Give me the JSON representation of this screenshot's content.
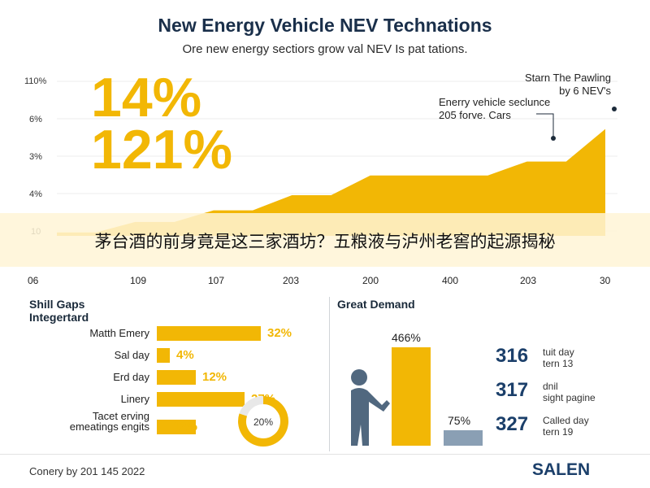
{
  "header": {
    "title": "New Energy Vehicle NEV Technations",
    "subtitle": "Ore new energy sectiors grow val NEV Is pat tations."
  },
  "highlights": {
    "stat_1": "14%",
    "stat_2": "121%"
  },
  "chart_data": [
    {
      "type": "area",
      "title": "New Energy Vehicle NEV Technations",
      "x_tick_labels": [
        "06",
        "109",
        "107",
        "203",
        "200",
        "400",
        "203",
        "30"
      ],
      "y_tick_labels": [
        "110%",
        "6%",
        "3%",
        "4%",
        "10"
      ],
      "color": "#f2b705",
      "series": [
        {
          "values": [
            0.3,
            1.2,
            2.2,
            3.5,
            5.2,
            5.2,
            6.4,
            9.2
          ]
        }
      ],
      "ylim": [
        0,
        14
      ],
      "annotations": [
        {
          "text_lines": [
            "Starn The Pawling",
            "by 6 NEV's"
          ]
        },
        {
          "text_lines": [
            "Enerry vehicle seclunce",
            "205 forve. Cars"
          ]
        }
      ]
    },
    {
      "type": "bar",
      "title": "Shill Gaps Integertard",
      "orientation": "horizontal",
      "color": "#f2b705",
      "categories": [
        "Matth Emery",
        "Sal day",
        "Erd day",
        "Linery",
        "Tacet erving emeatings engits"
      ],
      "values": [
        32,
        4,
        12,
        27,
        12
      ],
      "value_labels": [
        "32%",
        "4%",
        "12%",
        "27%",
        "12%"
      ],
      "xlim": [
        0,
        40
      ]
    },
    {
      "type": "pie",
      "label": "20%",
      "values": [
        80,
        20
      ],
      "colors": [
        "#f2b705",
        "#e8e8e8"
      ]
    },
    {
      "type": "bar",
      "title": "Great Demand",
      "categories": [
        "Yellow column",
        "Gray column"
      ],
      "values": [
        466,
        75
      ],
      "value_labels": [
        "466%",
        "75%"
      ],
      "colors": [
        "#f2b705",
        "#8a9fb4"
      ],
      "ylim": [
        0,
        500
      ]
    }
  ],
  "banner": {
    "text": "茅台酒的前身竟是这三家酒坊？五粮液与泸州老窖的起源揭秘"
  },
  "skills_panel": {
    "title_line_1": "Shill Gaps",
    "title_line_2": "Integertard",
    "label_line_5a": "Tacet erving",
    "label_line_5b": "emeatings engits"
  },
  "demand_panel": {
    "title": "Great Demand",
    "stats": [
      {
        "number": "316",
        "line_1": "tuit day",
        "line_2": "tern 13"
      },
      {
        "number": "317",
        "line_1": "dnil",
        "line_2": "sight pagine"
      },
      {
        "number": "327",
        "line_1": "Called day",
        "line_2": "tern 19"
      }
    ]
  },
  "footer": {
    "credit": "Conery by 201 145 2022",
    "brand": "SALEN"
  },
  "colors": {
    "accent": "#f2b705",
    "navy": "#1b3f6a",
    "gray_bar": "#8a9fb4"
  }
}
